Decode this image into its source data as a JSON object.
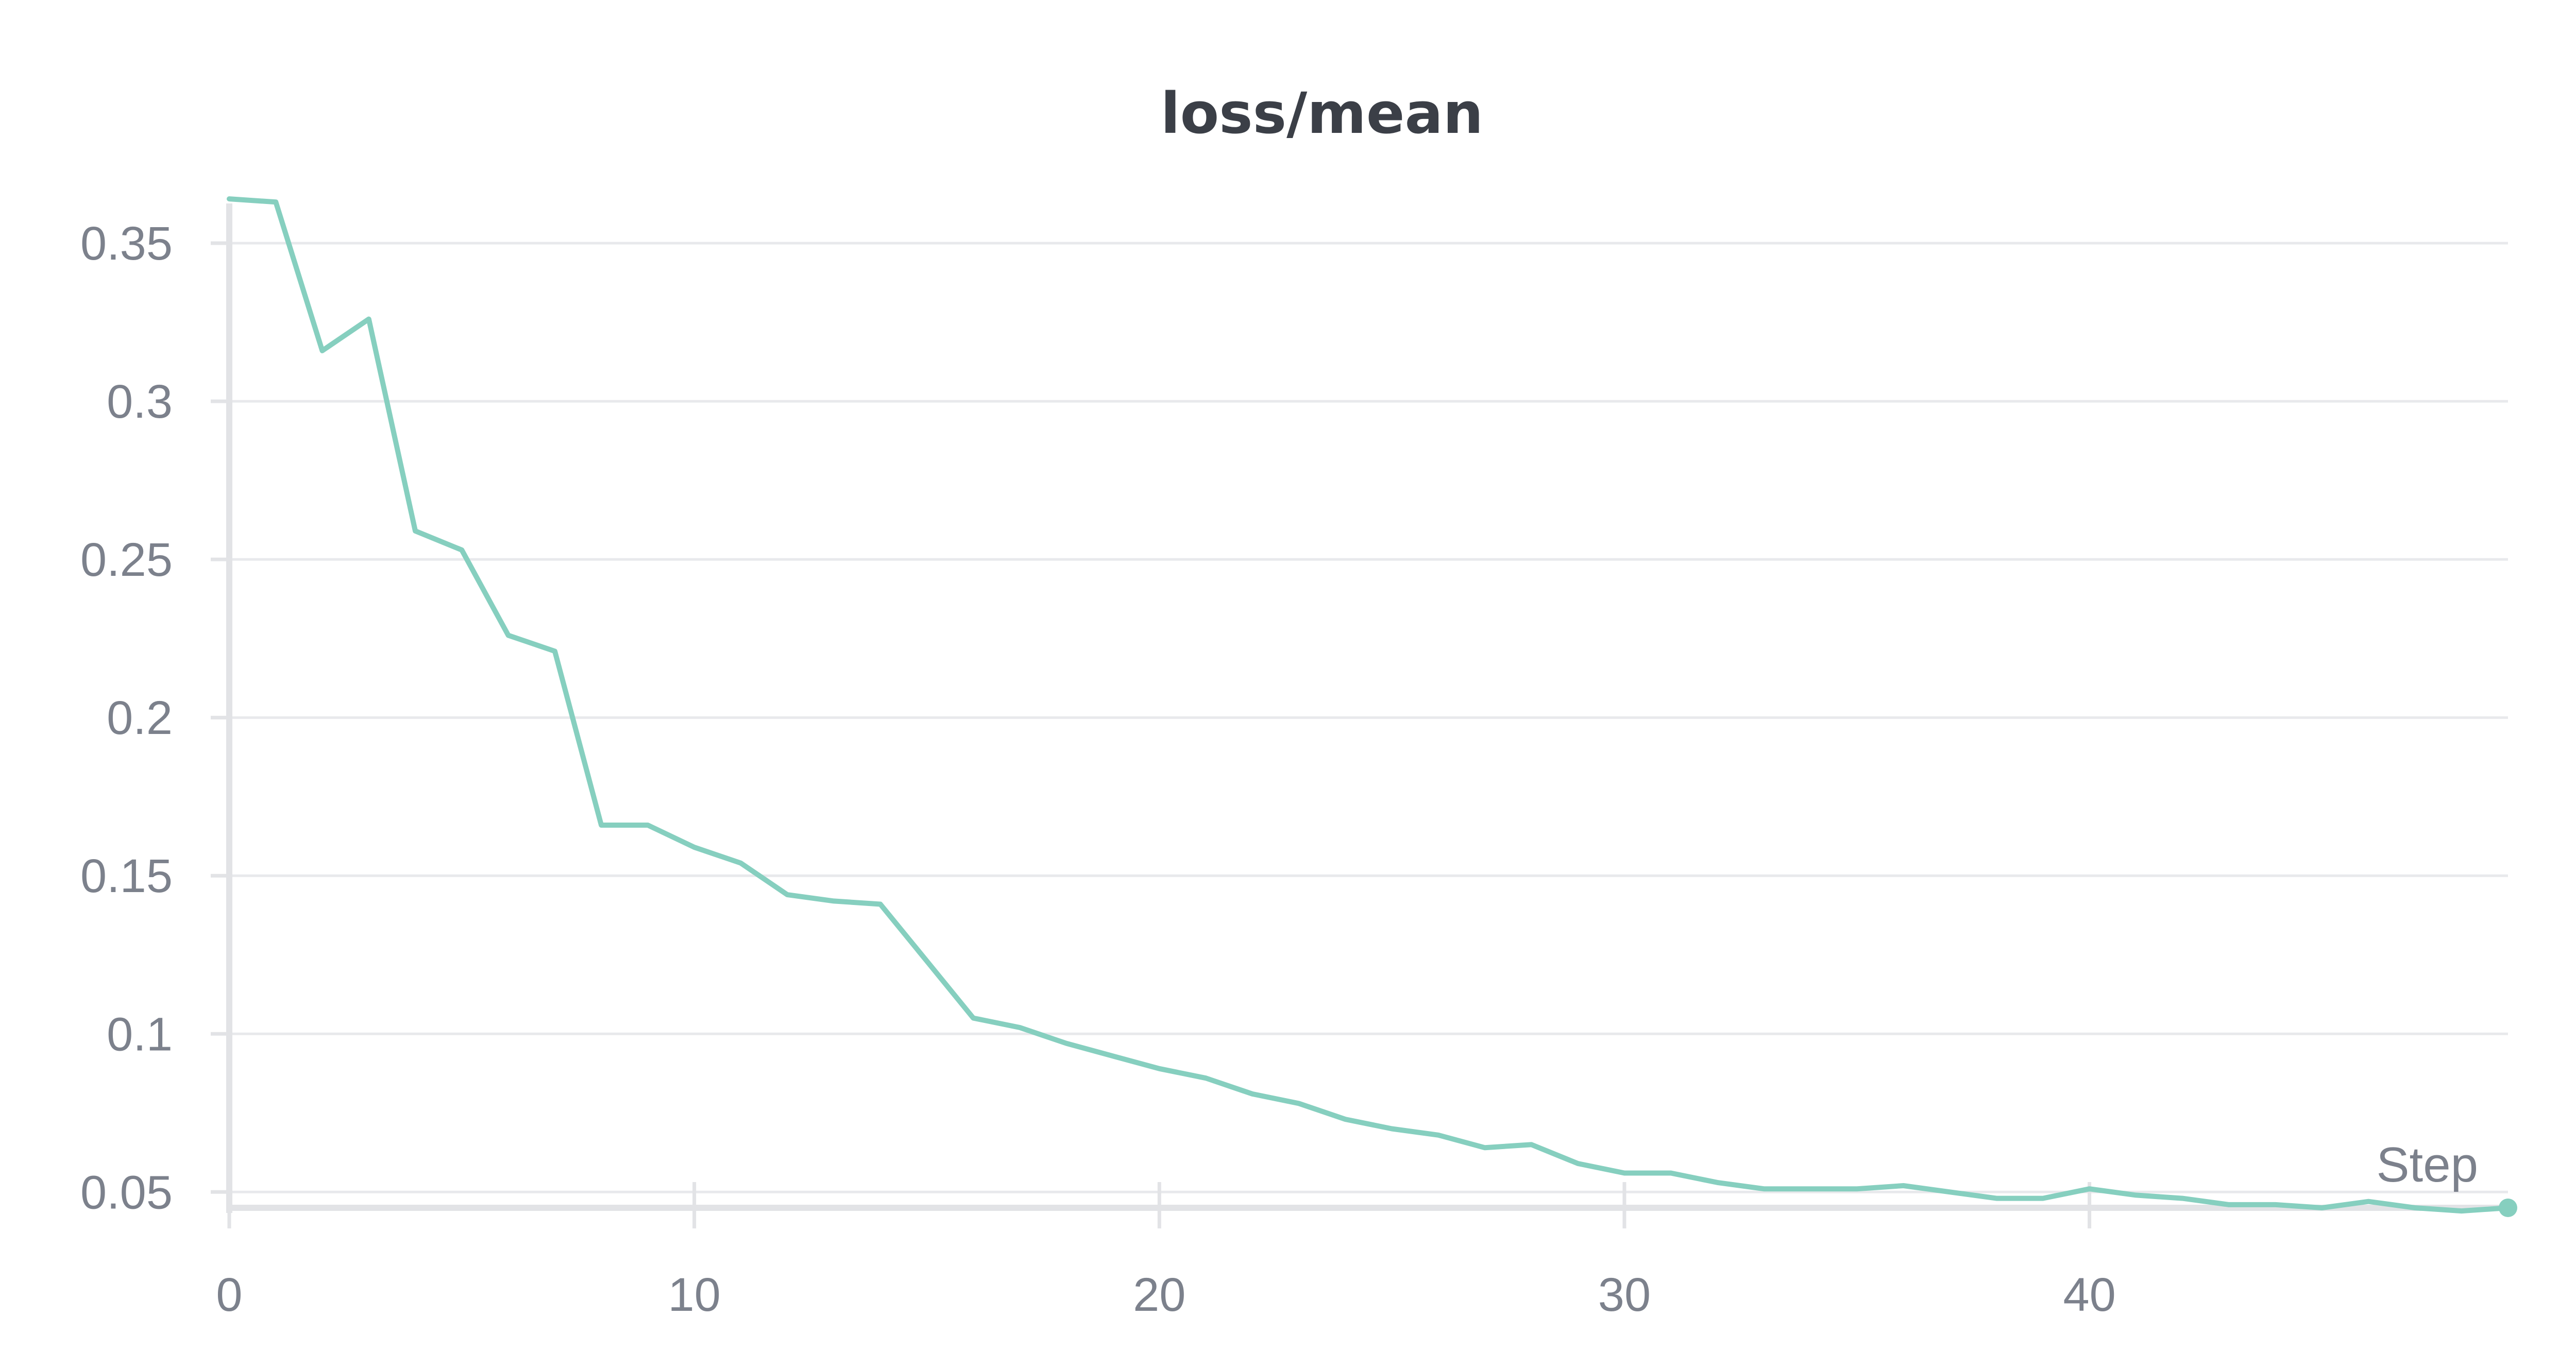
{
  "chart_data": {
    "type": "line",
    "title": "loss/mean",
    "xlabel": "Step",
    "ylabel": "",
    "color": "#86cfbf",
    "xlim": [
      0,
      49
    ],
    "ylim": [
      0.045,
      0.365
    ],
    "x_ticks": [
      0,
      10,
      20,
      30,
      40
    ],
    "x_tick_labels": [
      "0",
      "10",
      "20",
      "30",
      "40"
    ],
    "y_ticks": [
      0.05,
      0.1,
      0.15,
      0.2,
      0.25,
      0.3,
      0.35
    ],
    "y_tick_labels": [
      "0.05",
      "0.1",
      "0.15",
      "0.2",
      "0.25",
      "0.3",
      "0.35"
    ],
    "grid": true,
    "series": [
      {
        "x": [
          0,
          1,
          2,
          3,
          4,
          5,
          6,
          7,
          8,
          9,
          10,
          11,
          12,
          13,
          14,
          15,
          16,
          17,
          18,
          19,
          20,
          21,
          22,
          23,
          24,
          25,
          26,
          27,
          28,
          29,
          30,
          31,
          32,
          33,
          34,
          35,
          36,
          37,
          38,
          39,
          40,
          41,
          42,
          43,
          44,
          45,
          46,
          47,
          48,
          49
        ],
        "values": [
          0.364,
          0.363,
          0.316,
          0.326,
          0.259,
          0.253,
          0.226,
          0.221,
          0.166,
          0.166,
          0.159,
          0.154,
          0.144,
          0.142,
          0.141,
          0.123,
          0.105,
          0.102,
          0.097,
          0.093,
          0.089,
          0.086,
          0.081,
          0.078,
          0.073,
          0.07,
          0.068,
          0.064,
          0.065,
          0.059,
          0.056,
          0.056,
          0.053,
          0.051,
          0.051,
          0.051,
          0.052,
          0.05,
          0.048,
          0.048,
          0.051,
          0.049,
          0.048,
          0.046,
          0.046,
          0.045,
          0.047,
          0.045,
          0.044,
          0.045
        ]
      }
    ]
  }
}
